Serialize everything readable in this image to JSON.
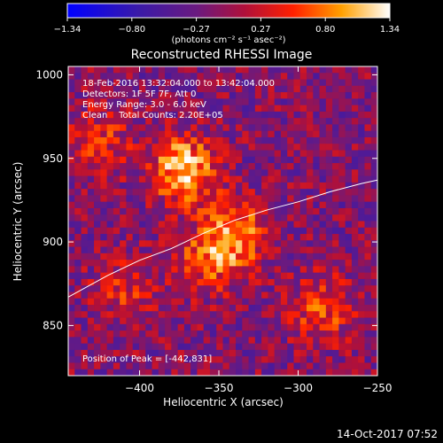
{
  "colorbar": {
    "ticks": [
      "-1.34",
      "-0.80",
      "-0.27",
      "0.27",
      "0.80",
      "1.34"
    ],
    "min": -1.34,
    "max": 1.34,
    "unit_label": "(photons cm⁻² s⁻¹ asec⁻²)"
  },
  "chart_data": {
    "type": "heatmap",
    "title": "Reconstructed RHESSI Image",
    "xlabel": "Heliocentric X (arcsec)",
    "ylabel": "Heliocentric Y (arcsec)",
    "xlim": [
      -445,
      -250
    ],
    "ylim": [
      820,
      1005
    ],
    "x_ticks": [
      -400,
      -350,
      -300,
      -250
    ],
    "y_ticks": [
      850,
      900,
      950,
      1000
    ],
    "x_tick_labels": [
      "−400",
      "−350",
      "−300",
      "−250"
    ],
    "y_tick_labels": [
      "850",
      "900",
      "950",
      "1000"
    ],
    "annotations": [
      "18-Feb-2016 13:32:04.000 to 13:42:04.000",
      "Detectors: 1F 5F 7F, Att 0",
      "Energy Range: 3.0 - 6.0 keV",
      "Clean    Total Counts: 2.20E+05"
    ],
    "peak_label": "Position of Peak = [-442,831]",
    "peak_position": [
      -442,
      831
    ],
    "limb_curve": {
      "x": [
        -445,
        -420,
        -400,
        -380,
        -360,
        -340,
        -320,
        -300,
        -280,
        -260,
        -250
      ],
      "y": [
        867,
        880,
        889,
        896,
        905,
        913,
        919,
        924,
        930,
        935,
        937
      ]
    },
    "emission_sources": [
      {
        "x": -372,
        "y": 943,
        "peak": 1.34
      },
      {
        "x": -338,
        "y": 905,
        "peak": 0.9
      },
      {
        "x": -355,
        "y": 890,
        "peak": 0.8
      },
      {
        "x": -425,
        "y": 960,
        "peak": 0.6
      },
      {
        "x": -285,
        "y": 860,
        "peak": 0.7
      },
      {
        "x": -410,
        "y": 870,
        "peak": 0.5
      }
    ],
    "colormap": "blue-purple-red-yellow-white",
    "grid": false
  },
  "footer": {
    "timestamp": "14-Oct-2017 07:52"
  }
}
